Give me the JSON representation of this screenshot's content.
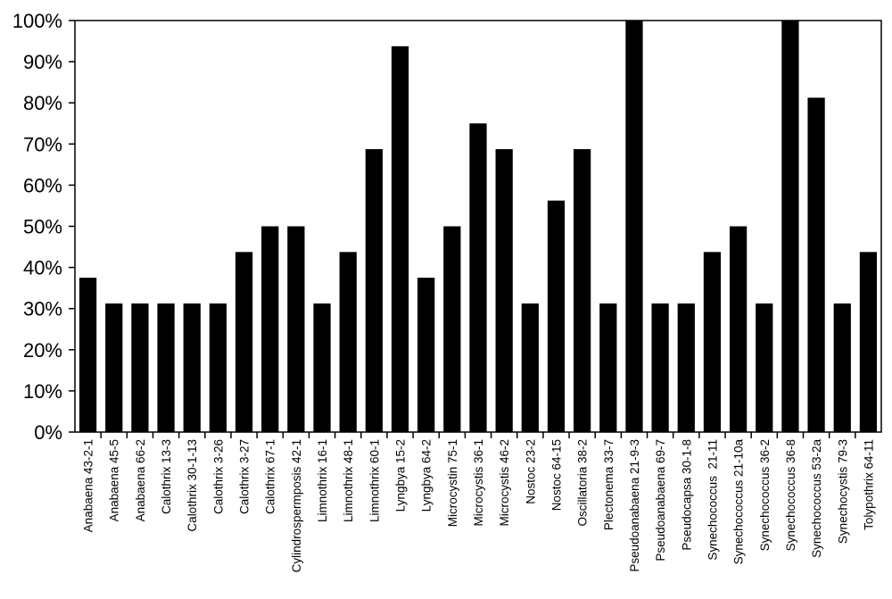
{
  "chart_data": {
    "type": "bar",
    "title": "",
    "xlabel": "",
    "ylabel": "",
    "ylim": [
      0,
      100
    ],
    "y_tick_values": [
      0,
      10,
      20,
      30,
      40,
      50,
      60,
      70,
      80,
      90,
      100
    ],
    "y_tick_labels": [
      "0%",
      "10%",
      "20%",
      "30%",
      "40%",
      "50%",
      "60%",
      "70%",
      "80%",
      "90%",
      "100%"
    ],
    "grid": false,
    "legend": "none",
    "bar_color": "#000000",
    "categories": [
      "Anabaena 43-2-1",
      "Anabaena 45-5",
      "Anabaena 66-2",
      "Calothrix 13-3",
      "Calothrix 30-1-13",
      "Calothrix 3-26",
      "Calothrix 3-27",
      "Calothrix 67-1",
      "Cylindrospermposis 42-1",
      "Limnothrix 16-1",
      "Limnothrix 48-1",
      "Limnothrix 60-1",
      "Lyngbya 15-2",
      "Lyngbya 64-2",
      "Microcystin 75-1",
      "Microcystis 36-1",
      "Microcystis 46-2",
      "Nostoc 23-2",
      "Nostoc 64-15",
      "Oscillatoria 38-2",
      "Plectonema 33-7",
      "Pseudoanabaena 21-9-3",
      "Pseudoanabaena 69-7",
      "Pseudocapsa 30-1-8",
      "Synechococcus  21-11",
      "Synechococcus 21-10a",
      "Synechococcus 36-2",
      "Synechococcus 36-8",
      "Synechococcus 53-2a",
      "Synechocystis 79-3",
      "Tolypothrix 64-11"
    ],
    "values": [
      37.5,
      31.25,
      31.25,
      31.25,
      31.25,
      31.25,
      43.75,
      50,
      50,
      31.25,
      43.75,
      68.75,
      93.75,
      37.5,
      50,
      75,
      68.75,
      31.25,
      56.25,
      68.75,
      31.25,
      100,
      31.25,
      31.25,
      43.75,
      50,
      31.25,
      100,
      81.25,
      31.25,
      43.75
    ]
  }
}
